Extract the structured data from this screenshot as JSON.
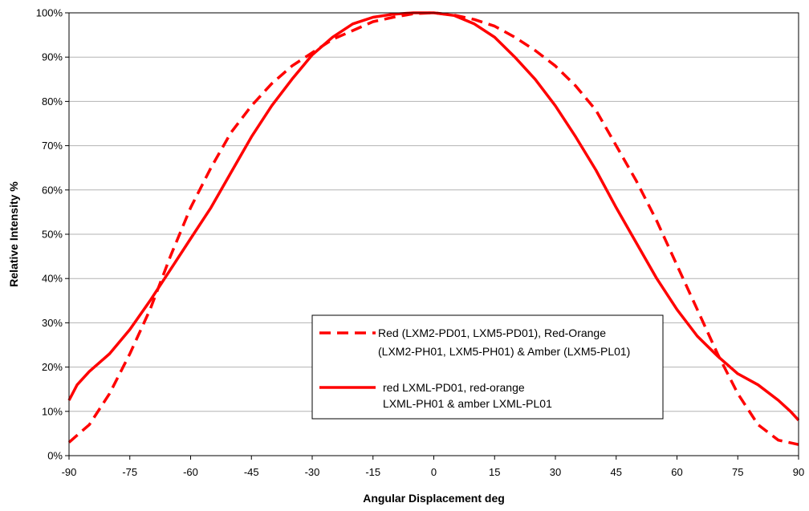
{
  "chart_data": {
    "type": "line",
    "title": "",
    "xlabel": "Angular Displacement deg",
    "ylabel": "Relative Intensity %",
    "xlim": [
      -90,
      90
    ],
    "ylim": [
      0,
      100
    ],
    "xticks": [
      "-90",
      "-75",
      "-60",
      "-45",
      "-30",
      "-15",
      "0",
      "15",
      "30",
      "45",
      "60",
      "75",
      "90"
    ],
    "xtick_values": [
      -90,
      -75,
      -60,
      -45,
      -30,
      -15,
      0,
      15,
      30,
      45,
      60,
      75,
      90
    ],
    "yticks": [
      "0%",
      "10%",
      "20%",
      "30%",
      "40%",
      "50%",
      "60%",
      "70%",
      "80%",
      "90%",
      "100%"
    ],
    "ytick_values": [
      0,
      10,
      20,
      30,
      40,
      50,
      60,
      70,
      80,
      90,
      100
    ],
    "grid": "horizontal",
    "legend_position": "lower-right",
    "series": [
      {
        "name": "Red (LXM2-PD01, LXM5-PD01), Red-Orange (LXM2-PH01, LXM5-PH01) & Amber (LXM5-PL01)",
        "legend_lines": [
          "Red (LXM2-PD01, LXM5-PD01), Red-Orange",
          "(LXM2-PH01, LXM5-PH01) & Amber (LXM5-PL01)"
        ],
        "style": "dashed",
        "color": "#ff0000",
        "x": [
          -90,
          -85,
          -80,
          -75,
          -70,
          -65,
          -60,
          -55,
          -50,
          -45,
          -40,
          -35,
          -30,
          -25,
          -20,
          -15,
          -10,
          -5,
          0,
          5,
          10,
          15,
          20,
          25,
          30,
          35,
          40,
          45,
          50,
          55,
          60,
          65,
          70,
          75,
          80,
          85,
          90
        ],
        "y": [
          3,
          7,
          14,
          23,
          33,
          45,
          56,
          65,
          73,
          79,
          84,
          88,
          91,
          94,
          96,
          98,
          99,
          99.8,
          100,
          99.5,
          98.5,
          97,
          94.5,
          91.5,
          88,
          83.5,
          78,
          70,
          62,
          53,
          43,
          33,
          23,
          14,
          7,
          3.5,
          2.5
        ]
      },
      {
        "name": "red LXML-PD01, red-orange LXML-PH01 & amber LXML-PL01",
        "legend_lines": [
          "red LXML-PD01, red-orange",
          "LXML-PH01 & amber LXML-PL01"
        ],
        "style": "solid",
        "color": "#ff0000",
        "x": [
          -90,
          -88,
          -85,
          -80,
          -75,
          -70,
          -65,
          -60,
          -55,
          -50,
          -45,
          -40,
          -35,
          -30,
          -25,
          -20,
          -15,
          -10,
          -5,
          0,
          5,
          10,
          15,
          20,
          25,
          30,
          35,
          40,
          45,
          50,
          55,
          60,
          65,
          70,
          75,
          80,
          85,
          88,
          90
        ],
        "y": [
          12.5,
          16,
          19,
          23,
          28.5,
          35,
          42,
          49,
          56,
          64,
          72,
          79,
          85,
          90.5,
          94.5,
          97.5,
          99,
          99.7,
          100,
          100,
          99.4,
          97.5,
          94.5,
          90,
          85,
          79,
          72,
          64.5,
          56,
          48,
          40,
          33,
          27,
          22.5,
          18.5,
          16,
          12.5,
          10,
          8
        ]
      }
    ]
  }
}
